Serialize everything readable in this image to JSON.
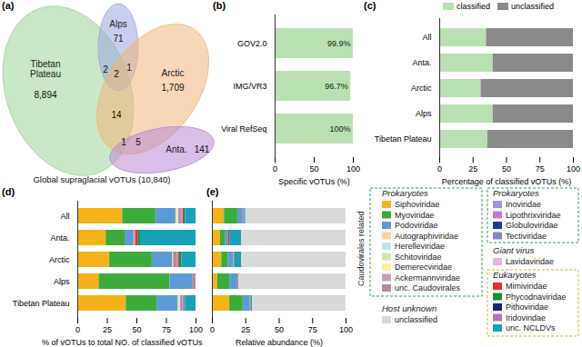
{
  "chart_data": [
    {
      "type": "venn",
      "panel": "(a)",
      "title": "Global supraglacial vOTUs (10,840)",
      "sets": [
        {
          "name": "Tibetan Plateau",
          "color": "#9fd39a"
        },
        {
          "name": "Alps",
          "color": "#9aa6dc"
        },
        {
          "name": "Arctic",
          "color": "#f1b679"
        },
        {
          "name": "Anta.",
          "color": "#b98ad6"
        }
      ],
      "regions": [
        {
          "sets": [
            "Tibetan Plateau"
          ],
          "value": 8894,
          "label": "8,894"
        },
        {
          "sets": [
            "Alps"
          ],
          "value": 71
        },
        {
          "sets": [
            "Arctic"
          ],
          "value": 1709,
          "label": "1,709"
        },
        {
          "sets": [
            "Anta."
          ],
          "value": 141
        },
        {
          "sets": [
            "Tibetan Plateau",
            "Alps"
          ],
          "value": 2
        },
        {
          "sets": [
            "Tibetan Plateau",
            "Alps",
            "Arctic"
          ],
          "value": 2
        },
        {
          "sets": [
            "Alps",
            "Arctic"
          ],
          "value": 1
        },
        {
          "sets": [
            "Tibetan Plateau",
            "Arctic"
          ],
          "value": 14
        },
        {
          "sets": [
            "Tibetan Plateau",
            "Arctic",
            "Anta."
          ],
          "value": 1
        },
        {
          "sets": [
            "Arctic",
            "Anta."
          ],
          "value": 5
        }
      ]
    },
    {
      "type": "bar",
      "panel": "(b)",
      "orientation": "horizontal",
      "categories": [
        "GOV2.0",
        "IMG/VR3",
        "Viral RefSeq"
      ],
      "values": [
        99.9,
        96.7,
        100
      ],
      "value_labels": [
        "99.9%",
        "96.7%",
        "100%"
      ],
      "data_labels": true,
      "color": "#b8e0b0",
      "xlabel": "Specific vOTUs (%)",
      "xlim": [
        0,
        100
      ],
      "xticks": [
        0,
        50,
        100
      ]
    },
    {
      "type": "bar",
      "panel": "(c)",
      "orientation": "horizontal",
      "stacked": true,
      "legend": "top",
      "categories": [
        "All",
        "Anta.",
        "Arctic",
        "Alps",
        "Tibetan Plateau"
      ],
      "series": [
        {
          "name": "classified",
          "color": "#b8e0b0",
          "values": [
            35,
            40,
            31,
            40,
            36
          ]
        },
        {
          "name": "unclassified",
          "color": "#8a8a8a",
          "values": [
            65,
            60,
            69,
            60,
            64
          ]
        }
      ],
      "xlabel": "Percentage of classified vOTUs (%)",
      "xlim": [
        0,
        100
      ],
      "xticks": [
        0,
        25,
        50,
        75,
        100
      ]
    },
    {
      "type": "bar",
      "panel": "(d)",
      "orientation": "horizontal",
      "stacked": true,
      "categories": [
        "All",
        "Anta.",
        "Arctic",
        "Alps",
        "Tibetan Plateau"
      ],
      "series": [
        {
          "name": "Siphoviridae",
          "color": "#f5b21b",
          "values": [
            38,
            24,
            27,
            18,
            41
          ]
        },
        {
          "name": "Myoviridae",
          "color": "#3dab3a",
          "values": [
            28,
            16,
            36,
            60,
            26
          ]
        },
        {
          "name": "Podoviridae",
          "color": "#5b9bd5",
          "values": [
            17,
            7,
            17,
            19,
            18
          ]
        },
        {
          "name": "Autographiviridae",
          "color": "#f9d49b",
          "values": [
            1,
            0,
            1,
            0,
            1
          ]
        },
        {
          "name": "Herelleviridae",
          "color": "#bfe6ef",
          "values": [
            0.5,
            0,
            0,
            0,
            0.5
          ]
        },
        {
          "name": "Schitoviridae",
          "color": "#cfe8b4",
          "values": [
            0.5,
            0,
            0,
            0,
            0.5
          ]
        },
        {
          "name": "Demerecviridae",
          "color": "#fbf0a8",
          "values": [
            0.3,
            0,
            0,
            0,
            0
          ]
        },
        {
          "name": "Ackermannviridae",
          "color": "#c9a0b8",
          "values": [
            0.2,
            0,
            0,
            0,
            0
          ]
        },
        {
          "name": "unc. Caudovirales",
          "color": "#b58a9b",
          "values": [
            2,
            1,
            3,
            3,
            2
          ]
        },
        {
          "name": "Inoviridae",
          "color": "#9f96e0",
          "values": [
            1,
            1,
            1,
            0,
            1
          ]
        },
        {
          "name": "Lipothrixviridae",
          "color": "#c17ad6",
          "values": [
            0,
            0,
            0,
            0,
            0
          ]
        },
        {
          "name": "Globuloviridae",
          "color": "#1e3d8f",
          "values": [
            0,
            0,
            0,
            0,
            0
          ]
        },
        {
          "name": "Tectiviridae",
          "color": "#8585c8",
          "values": [
            0,
            0,
            0,
            0,
            0
          ]
        },
        {
          "name": "Lavidaviridae",
          "color": "#e7b5e0",
          "values": [
            0.5,
            0,
            0,
            0,
            0
          ]
        },
        {
          "name": "Mimiviridae",
          "color": "#e8312f",
          "values": [
            1,
            2,
            1,
            0,
            0.5
          ]
        },
        {
          "name": "Phycodnaviridae",
          "color": "#1e8a3c",
          "values": [
            1,
            2,
            2,
            0,
            0.5
          ]
        },
        {
          "name": "Pithoviridae",
          "color": "#1a237e",
          "values": [
            0,
            0,
            0,
            0,
            0
          ]
        },
        {
          "name": "Iridoviridae",
          "color": "#b56fc6",
          "values": [
            0,
            0,
            0,
            0,
            0
          ]
        },
        {
          "name": "unc. NCLDVs",
          "color": "#17a2b8",
          "values": [
            9,
            47,
            12,
            0,
            9
          ]
        }
      ],
      "xlabel": "% of vOTUs to total NO. of classified vOTUs",
      "xlim": [
        0,
        100
      ],
      "xticks": [
        0,
        25,
        50,
        75,
        100
      ]
    },
    {
      "type": "bar",
      "panel": "(e)",
      "orientation": "horizontal",
      "stacked": true,
      "tick_labels": "x",
      "categories": [
        null,
        null,
        null,
        null,
        null
      ],
      "series": [
        {
          "name": "Siphoviridae",
          "color": "#f5b21b",
          "values": [
            9,
            6,
            7,
            4,
            13
          ]
        },
        {
          "name": "Myoviridae",
          "color": "#3dab3a",
          "values": [
            10,
            4,
            5,
            9,
            10
          ]
        },
        {
          "name": "Podoviridae",
          "color": "#5b9bd5",
          "values": [
            4,
            2,
            4,
            6,
            5
          ]
        },
        {
          "name": "unc. Caudovirales",
          "color": "#b58a9b",
          "values": [
            1,
            0,
            1,
            1,
            1
          ]
        },
        {
          "name": "Mimiviridae",
          "color": "#e8312f",
          "values": [
            0,
            1,
            0,
            0,
            0
          ]
        },
        {
          "name": "unc. NCLDVs",
          "color": "#17a2b8",
          "values": [
            1,
            9,
            5,
            0,
            1
          ]
        },
        {
          "name": "unclassified",
          "color": "#d9d9d9",
          "values": [
            75,
            78,
            78,
            80,
            70
          ]
        }
      ],
      "xlabel": "Relative abundance (%)",
      "xlim": [
        0,
        100
      ],
      "xticks": [
        0,
        25,
        50,
        75,
        100
      ]
    }
  ],
  "family_legend": {
    "groups": [
      {
        "title": "Prokaryotes",
        "subtitle": "Caudovirales related",
        "items": [
          "Siphoviridae",
          "Myoviridae",
          "Podoviridae",
          "Autographiviridae",
          "Herelleviridae",
          "Schitoviridae",
          "Demerecviridae",
          "Ackermannviridae",
          "unc. Caudovirales"
        ]
      },
      {
        "title": "Prokaryotes",
        "items": [
          "Inoviridae",
          "Lipothrixviridae",
          "Globuloviridae",
          "Tectiviridae"
        ]
      },
      {
        "title": "Giant virus",
        "items": [
          "Lavidaviridae"
        ]
      },
      {
        "title": "Eukaryotes",
        "items": [
          "Mimiviridae",
          "Phycodnaviridae",
          "Pithoviridae",
          "Iridoviridae",
          "unc. NCLDVs"
        ]
      },
      {
        "title": "Host unknown",
        "items": [
          "unclassified"
        ]
      }
    ]
  }
}
